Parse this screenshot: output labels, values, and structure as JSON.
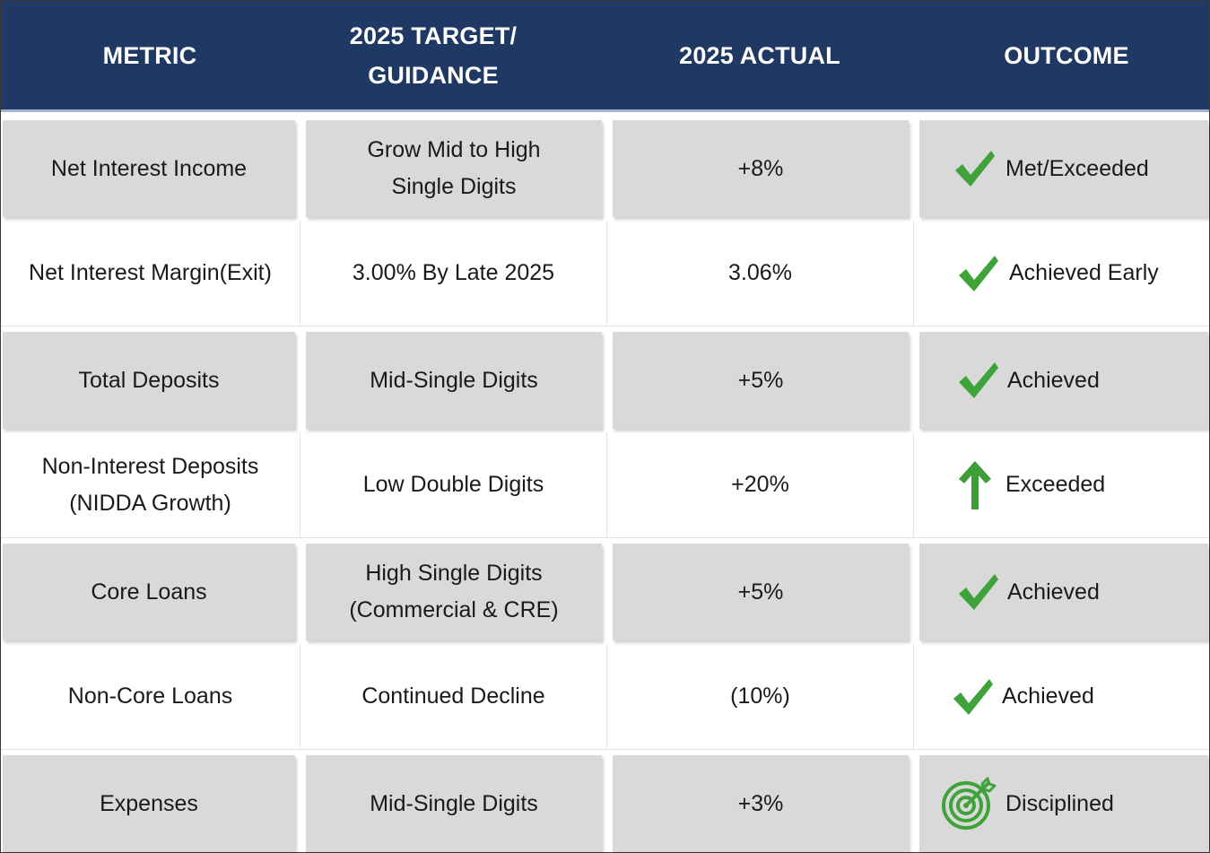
{
  "colors": {
    "header_bg": "#1f3864",
    "header_text": "#ffffff",
    "shaded_cell": "#d9d9d9",
    "check_green": "#3fa33a",
    "arrow_green": "#3d9e36"
  },
  "header": {
    "metric": "METRIC",
    "target": "2025 TARGET/\nGUIDANCE",
    "actual": "2025 ACTUAL",
    "outcome": "OUTCOME"
  },
  "rows": [
    {
      "metric": "Net Interest Income",
      "target": "Grow Mid to High\nSingle Digits",
      "actual": "+8%",
      "outcome": "Met/Exceeded",
      "icon": "checkmark-icon"
    },
    {
      "metric": "Net Interest Margin(Exit)",
      "target": "3.00% By Late 2025",
      "actual": "3.06%",
      "outcome": "Achieved Early",
      "icon": "checkmark-icon"
    },
    {
      "metric": "Total Deposits",
      "target": "Mid-Single Digits",
      "actual": "+5%",
      "outcome": "Achieved",
      "icon": "checkmark-icon"
    },
    {
      "metric": "Non-Interest Deposits\n(NIDDA Growth)",
      "target": "Low Double Digits",
      "actual": "+20%",
      "outcome": "Exceeded",
      "icon": "up-arrow-icon"
    },
    {
      "metric": "Core Loans",
      "target": "High Single Digits\n(Commercial & CRE)",
      "actual": "+5%",
      "outcome": "Achieved",
      "icon": "checkmark-icon"
    },
    {
      "metric": "Non-Core Loans",
      "target": "Continued Decline",
      "actual": "(10%)",
      "outcome": "Achieved",
      "icon": "checkmark-icon"
    },
    {
      "metric": "Expenses",
      "target": "Mid-Single Digits",
      "actual": "+3%",
      "outcome": "Disciplined",
      "icon": "target-icon"
    }
  ]
}
